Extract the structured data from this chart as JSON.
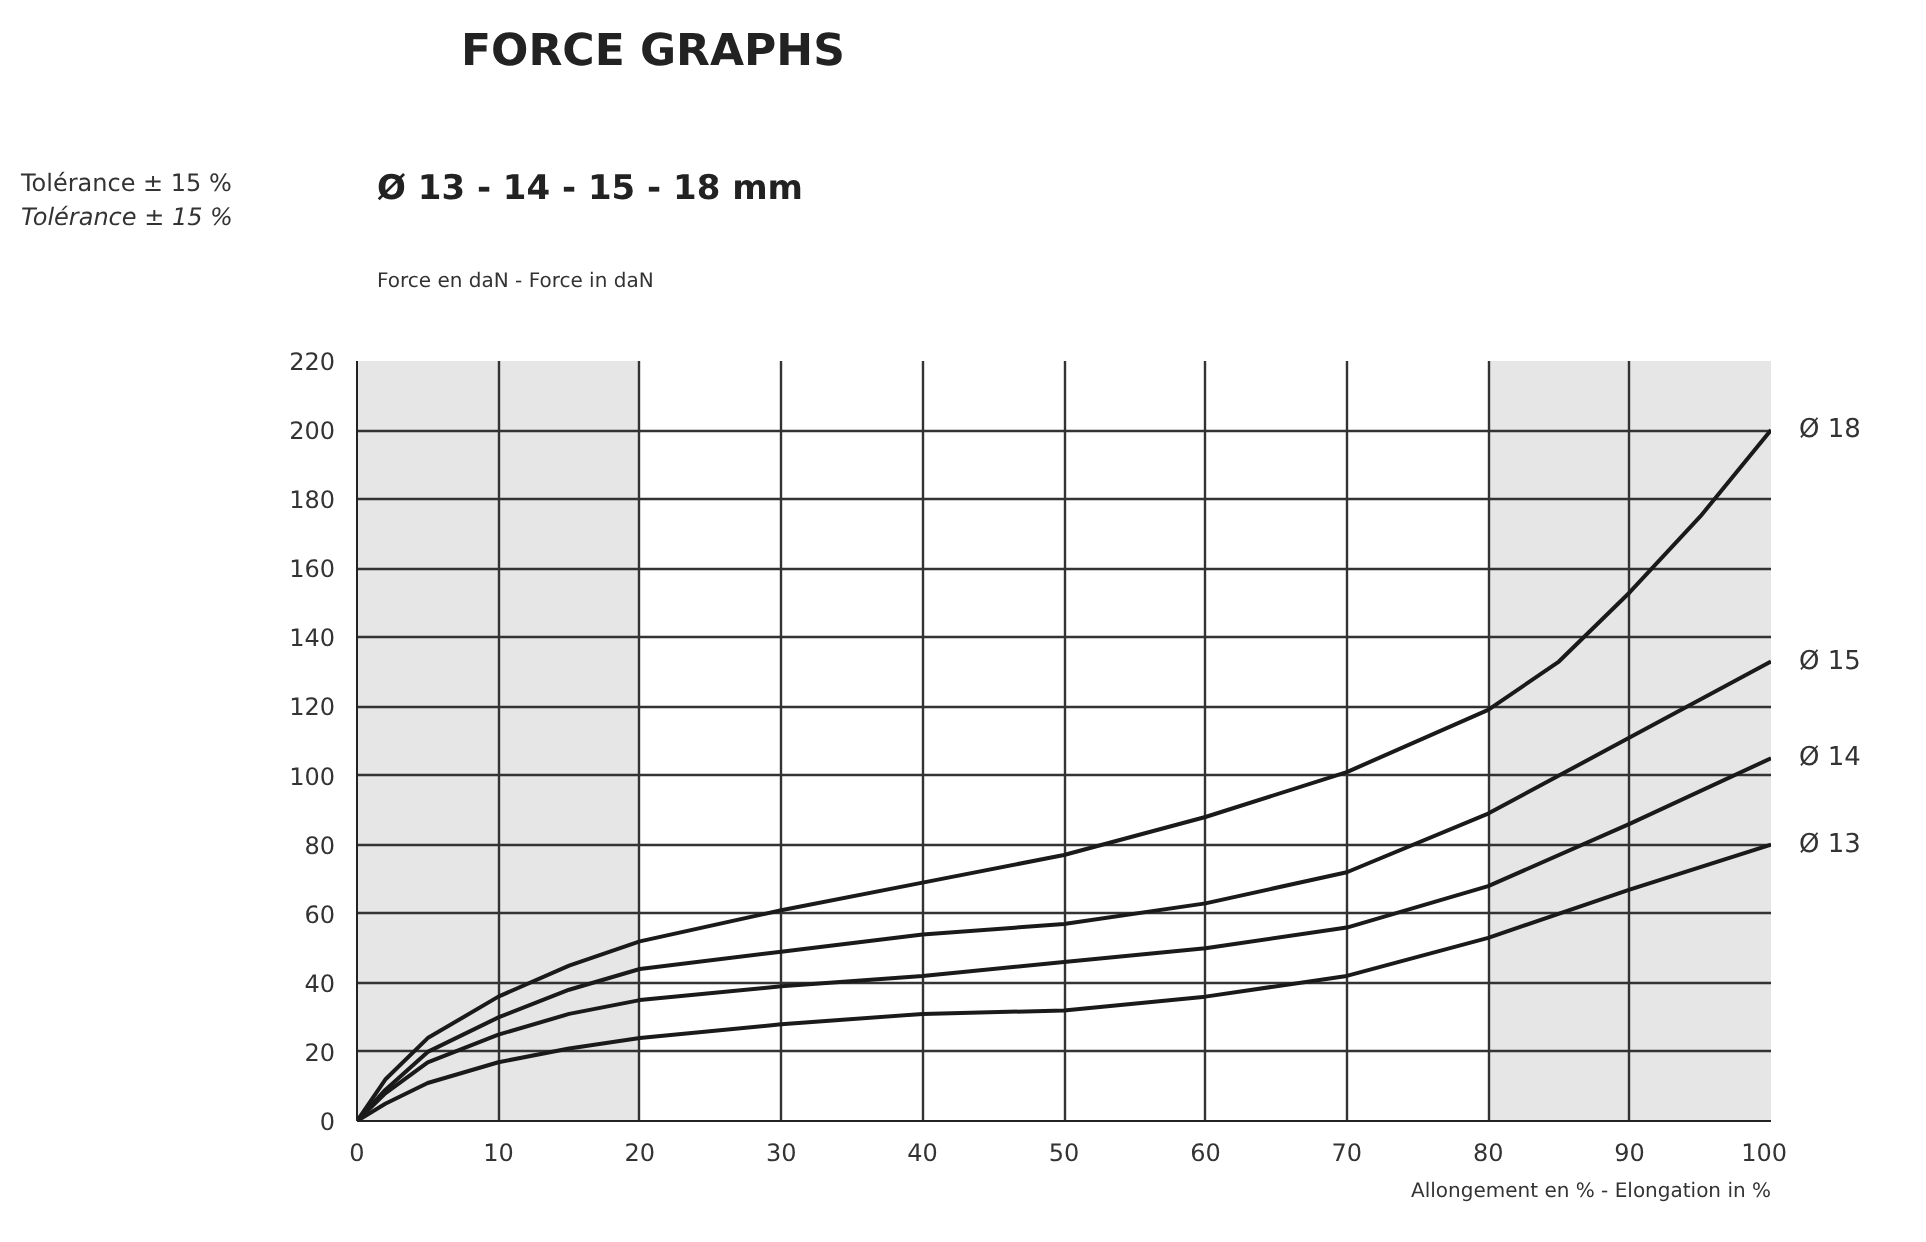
{
  "chart_data": {
    "type": "line",
    "title": "FORCE GRAPHS",
    "subtitle": "Ø 13 - 14 - 15 - 18 mm",
    "annotations": [
      "Tolérance ± 15 %",
      "Tolérance ± 15 %"
    ],
    "ylabel": "Force en daN - Force in daN",
    "xlabel": "Allongement en % - Elongation in %",
    "xlim": [
      0,
      100
    ],
    "xticks": [
      0,
      10,
      20,
      30,
      40,
      50,
      60,
      70,
      80,
      90,
      100
    ],
    "ylim": [
      0,
      220
    ],
    "yticks": [
      0,
      20,
      40,
      60,
      80,
      100,
      120,
      140,
      160,
      180,
      200,
      220
    ],
    "grid": true,
    "legend": false,
    "marker": "none",
    "line_style": "solid",
    "bands": [
      {
        "axis": "x",
        "from": 0,
        "to": 20,
        "color": "#e6e6e6"
      },
      {
        "axis": "x",
        "from": 80,
        "to": 100,
        "color": "#e6e6e6"
      }
    ],
    "series": [
      {
        "name": "Ø 18",
        "color": "#1a1a1a",
        "x": [
          0,
          2,
          5,
          10,
          15,
          20,
          30,
          40,
          50,
          60,
          70,
          80,
          85,
          90,
          95,
          100
        ],
        "values": [
          0,
          12,
          24,
          36,
          45,
          52,
          61,
          69,
          77,
          88,
          101,
          119,
          133,
          153,
          175,
          200
        ]
      },
      {
        "name": "Ø 15",
        "color": "#1a1a1a",
        "x": [
          0,
          2,
          5,
          10,
          15,
          20,
          30,
          40,
          50,
          60,
          70,
          80,
          90,
          100
        ],
        "values": [
          0,
          9,
          20,
          30,
          38,
          44,
          49,
          54,
          57,
          63,
          72,
          89,
          111,
          133
        ]
      },
      {
        "name": "Ø 14",
        "color": "#1a1a1a",
        "x": [
          0,
          2,
          5,
          10,
          15,
          20,
          30,
          40,
          50,
          60,
          70,
          80,
          90,
          100
        ],
        "values": [
          0,
          8,
          17,
          25,
          31,
          35,
          39,
          42,
          46,
          50,
          56,
          68,
          86,
          105
        ]
      },
      {
        "name": "Ø 13",
        "color": "#1a1a1a",
        "x": [
          0,
          2,
          5,
          10,
          15,
          20,
          30,
          40,
          50,
          60,
          70,
          80,
          90,
          100
        ],
        "values": [
          0,
          5,
          11,
          17,
          21,
          24,
          28,
          31,
          32,
          36,
          42,
          53,
          67,
          80
        ]
      }
    ]
  }
}
